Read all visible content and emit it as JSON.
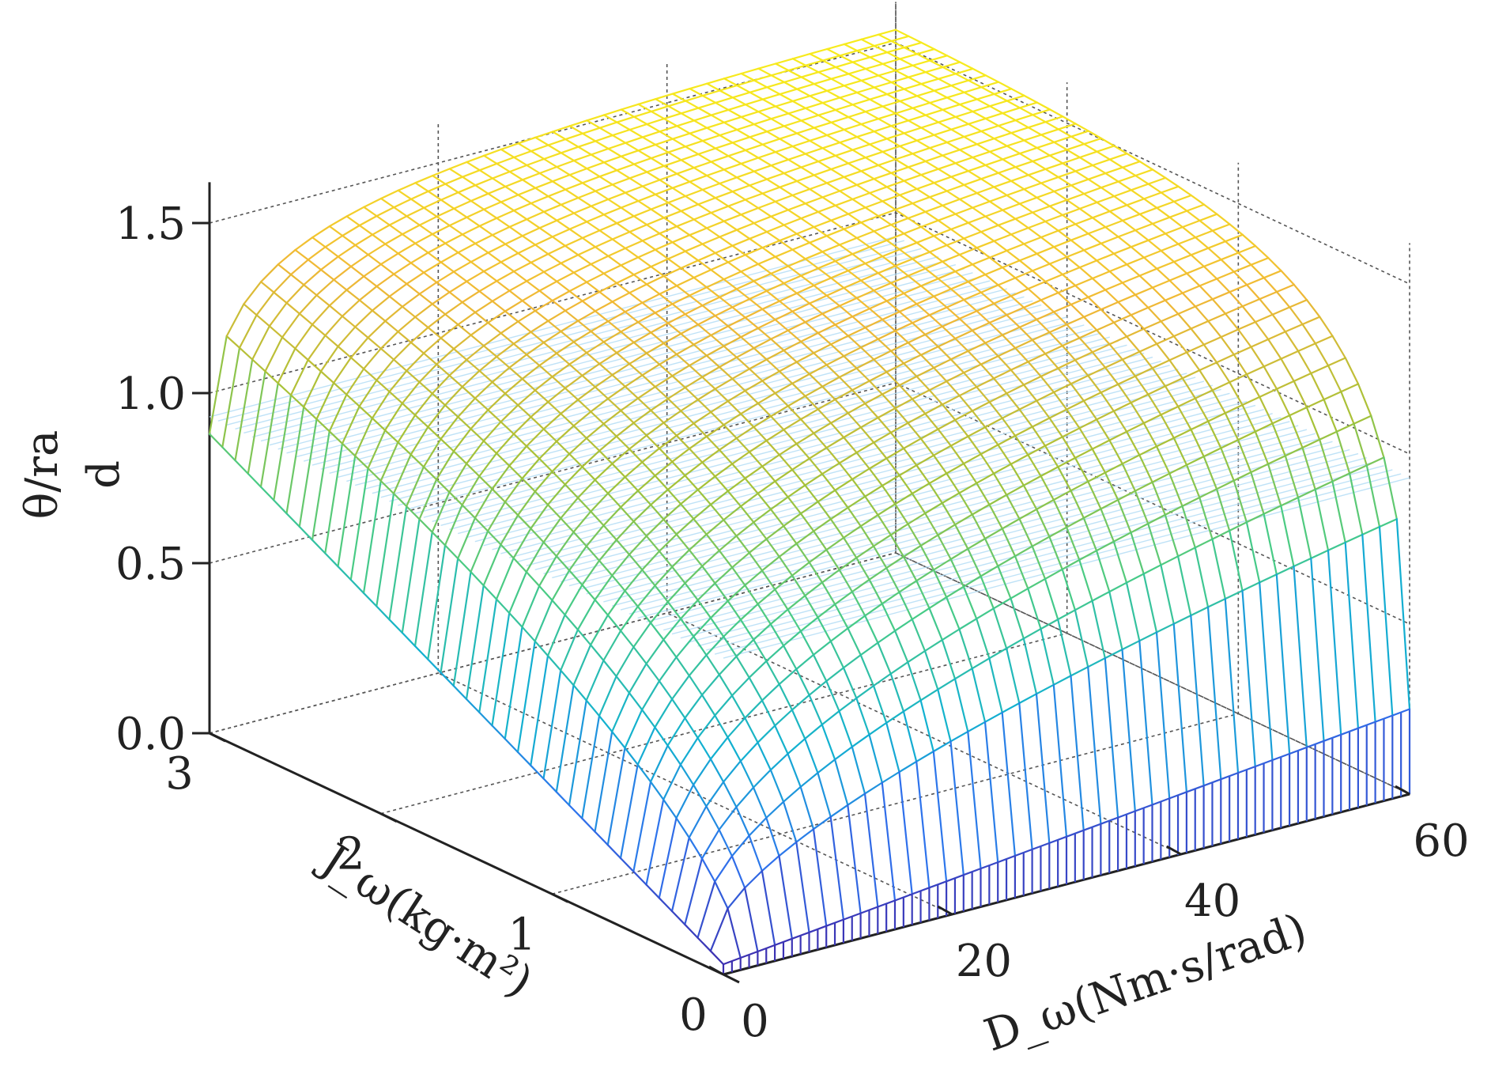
{
  "chart_data": {
    "type": "surface",
    "title": "",
    "zlabel_line1": "θ/ra",
    "zlabel_line2": "d",
    "ylabel": "J_ω(kg·m²)",
    "xlabel": "D_ω(Nm·s/rad)",
    "x_range": [
      0,
      60
    ],
    "y_range": [
      0,
      3
    ],
    "z_range": [
      0,
      1.6
    ],
    "x_ticks": [
      0,
      20,
      40,
      60
    ],
    "y_ticks": [
      0,
      1,
      2,
      3
    ],
    "z_ticks": [
      0.0,
      0.5,
      1.0,
      1.5
    ],
    "x_tick_labels": [
      "0",
      "20",
      "40",
      "60"
    ],
    "y_tick_labels": [
      "0",
      "1",
      "2",
      "3"
    ],
    "z_tick_labels": [
      "0.0",
      "0.5",
      "1.0",
      "1.5"
    ],
    "grid": true,
    "colormap": "parula",
    "colormap_stops": [
      "#3e26a8",
      "#2f72ed",
      "#12b1d0",
      "#48cb86",
      "#a5c238",
      "#f0b836",
      "#f9fb14"
    ],
    "surface_samples": [
      {
        "D": 0,
        "J": 0,
        "theta": 0.03
      },
      {
        "D": 0,
        "J": 3,
        "theta": 0.88
      },
      {
        "D": 60,
        "J": 0,
        "theta": 0.25
      },
      {
        "D": 60,
        "J": 3,
        "theta": 1.48
      },
      {
        "D": 30,
        "J": 1.5,
        "theta": 1.25
      }
    ],
    "reference_plane": {
      "theta": 0.93,
      "color": "#b5def6"
    },
    "legend": "none"
  }
}
